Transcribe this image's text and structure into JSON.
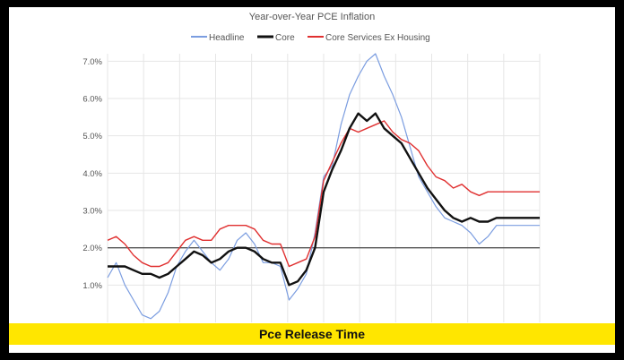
{
  "banner": {
    "text": "Pce Release Time"
  },
  "chart_data": {
    "type": "line",
    "title": "Year-over-Year PCE Inflation",
    "xlabel": "",
    "ylabel": "",
    "ylim": [
      0,
      7.2
    ],
    "yticks": [
      "7.0%",
      "6.0%",
      "5.0%",
      "4.0%",
      "3.0%",
      "2.0%",
      "1.0%"
    ],
    "ytick_values": [
      7,
      6,
      5,
      4,
      3,
      2,
      1
    ],
    "reference_line": 2.0,
    "legend_position": "top",
    "x": [
      0,
      2,
      4,
      6,
      8,
      10,
      12,
      14,
      16,
      18,
      20,
      22,
      24,
      26,
      28,
      30,
      32,
      34,
      36,
      38,
      40,
      42,
      44,
      46,
      48,
      50,
      52,
      54,
      56,
      58,
      60,
      62,
      64,
      66,
      68,
      70,
      72,
      74,
      76,
      78,
      80,
      82,
      84,
      86,
      88,
      90,
      92,
      94,
      96,
      98,
      100
    ],
    "series": [
      {
        "name": "Headline",
        "color": "#7b9de0",
        "values": [
          1.2,
          1.6,
          1.0,
          0.6,
          0.2,
          0.1,
          0.3,
          0.8,
          1.5,
          1.9,
          2.2,
          1.9,
          1.6,
          1.4,
          1.7,
          2.2,
          2.4,
          2.1,
          1.6,
          1.6,
          1.5,
          0.6,
          0.9,
          1.3,
          2.4,
          3.9,
          4.2,
          5.3,
          6.1,
          6.6,
          7.0,
          7.2,
          6.6,
          6.1,
          5.5,
          4.7,
          3.9,
          3.5,
          3.1,
          2.8,
          2.7,
          2.6,
          2.4,
          2.1,
          2.3,
          2.6,
          2.6,
          2.6,
          2.6,
          2.6,
          2.6
        ]
      },
      {
        "name": "Core",
        "color": "#111111",
        "values": [
          1.5,
          1.5,
          1.5,
          1.4,
          1.3,
          1.3,
          1.2,
          1.3,
          1.5,
          1.7,
          1.9,
          1.8,
          1.6,
          1.7,
          1.9,
          2.0,
          2.0,
          1.9,
          1.7,
          1.6,
          1.6,
          1.0,
          1.1,
          1.4,
          2.0,
          3.5,
          4.1,
          4.6,
          5.2,
          5.6,
          5.4,
          5.6,
          5.2,
          5.0,
          4.8,
          4.4,
          4.0,
          3.6,
          3.3,
          3.0,
          2.8,
          2.7,
          2.8,
          2.7,
          2.7,
          2.8,
          2.8,
          2.8,
          2.8,
          2.8,
          2.8
        ]
      },
      {
        "name": "Core Services Ex Housing",
        "color": "#e03030",
        "values": [
          2.2,
          2.3,
          2.1,
          1.8,
          1.6,
          1.5,
          1.5,
          1.6,
          1.9,
          2.2,
          2.3,
          2.2,
          2.2,
          2.5,
          2.6,
          2.6,
          2.6,
          2.5,
          2.2,
          2.1,
          2.1,
          1.5,
          1.6,
          1.7,
          2.3,
          3.8,
          4.3,
          4.8,
          5.2,
          5.1,
          5.2,
          5.3,
          5.4,
          5.1,
          4.9,
          4.8,
          4.6,
          4.2,
          3.9,
          3.8,
          3.6,
          3.7,
          3.5,
          3.4,
          3.5,
          3.5,
          3.5,
          3.5,
          3.5,
          3.5,
          3.5
        ]
      }
    ]
  }
}
